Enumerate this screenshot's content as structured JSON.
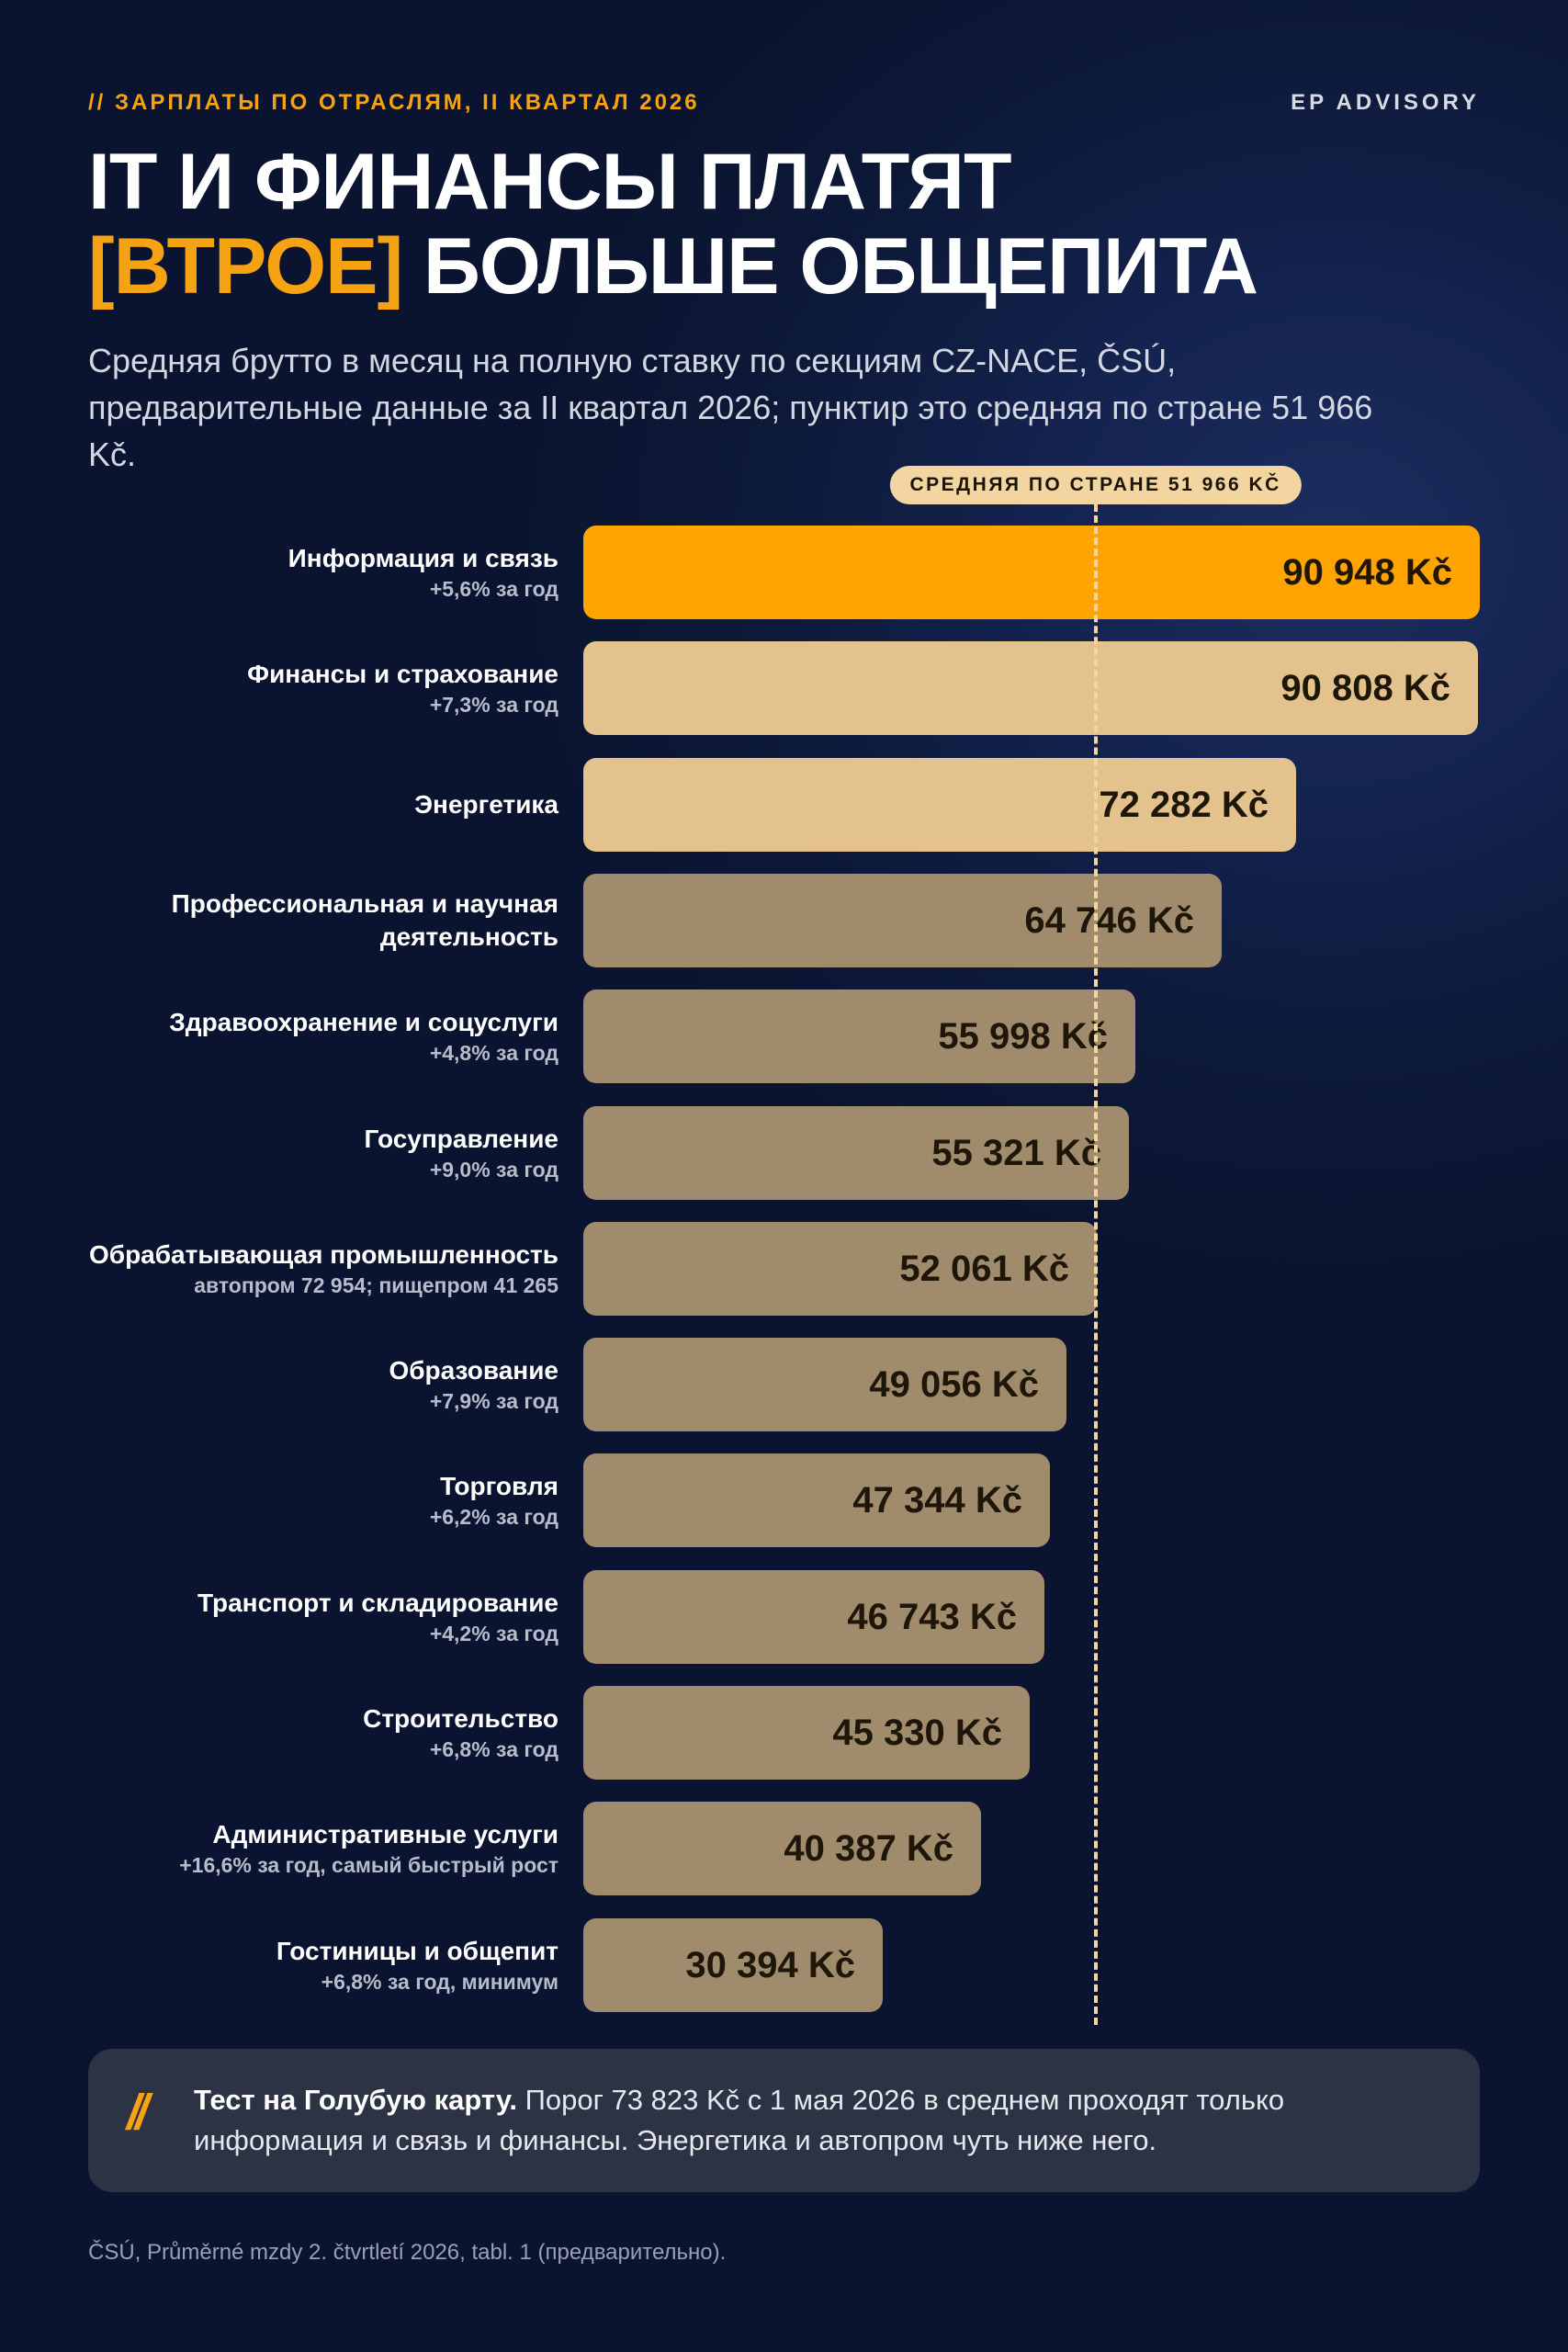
{
  "header": {
    "kicker": "// ЗАРПЛАТЫ ПО ОТРАСЛЯМ, II КВАРТАЛ 2026",
    "brand": "EP ADVISORY"
  },
  "headline": {
    "line1": "IT И ФИНАНСЫ ПЛАТЯТ",
    "accent": "[ВТРОЕ]",
    "line2_rest": "БОЛЬШЕ ОБЩЕПИТА"
  },
  "subtitle": "Средняя брутто в месяц на полную ставку по секциям CZ-NACE, ČSÚ, предварительные данные за II квартал 2026; пунктир это средняя по стране 51 966 Kč.",
  "chart_data": {
    "type": "bar",
    "orientation": "horizontal",
    "unit": "Kč",
    "reference_line": {
      "label": "СРЕДНЯЯ ПО СТРАНЕ 51 966 KČ",
      "value": 51966
    },
    "colors": {
      "highlight": "#ffa400",
      "high": "#e3c28d",
      "rest": "#a08c6c"
    },
    "categories": [
      "Информация и связь",
      "Финансы и страхование",
      "Энергетика",
      "Профессиональная и научная деятельность",
      "Здравоохранение и соцуслуги",
      "Госуправление",
      "Обрабатывающая промышленность",
      "Образование",
      "Торговля",
      "Транспорт и складирование",
      "Строительство",
      "Административные услуги",
      "Гостиницы и общепит"
    ],
    "notes": [
      "+5,6% за год",
      "+7,3% за год",
      "",
      "",
      "+4,8% за год",
      "+9,0% за год",
      "автопром 72 954; пищепром 41 265",
      "+7,9% за год",
      "+6,2% за год",
      "+4,2% за год",
      "+6,8% за год",
      "+16,6% за год, самый быстрый рост",
      "+6,8% за год, минимум"
    ],
    "values": [
      90948,
      90808,
      72282,
      64746,
      55998,
      55321,
      52061,
      49056,
      47344,
      46743,
      45330,
      40387,
      30394
    ],
    "value_labels": [
      "90 948 Kč",
      "90 808 Kč",
      "72 282 Kč",
      "64 746 Kč",
      "55 998 Kč",
      "55 321 Kč",
      "52 061 Kč",
      "49 056 Kč",
      "47 344 Kč",
      "46 743 Kč",
      "45 330 Kč",
      "40 387 Kč",
      "30 394 Kč"
    ],
    "tiers": [
      "highlight",
      "high",
      "high",
      "rest",
      "rest",
      "rest",
      "rest",
      "rest",
      "rest",
      "rest",
      "rest",
      "rest",
      "rest"
    ]
  },
  "callout": {
    "mark": "//",
    "lead": "Тест на Голубую карту.",
    "text": " Порог 73 823 Kč с 1 мая 2026 в среднем проходят только информация и связь и финансы. Энергетика и автопром чуть ниже него."
  },
  "source": "ČSÚ, Průměrné mzdy 2. čtvrtletí 2026, tabl. 1 (предварительно)."
}
